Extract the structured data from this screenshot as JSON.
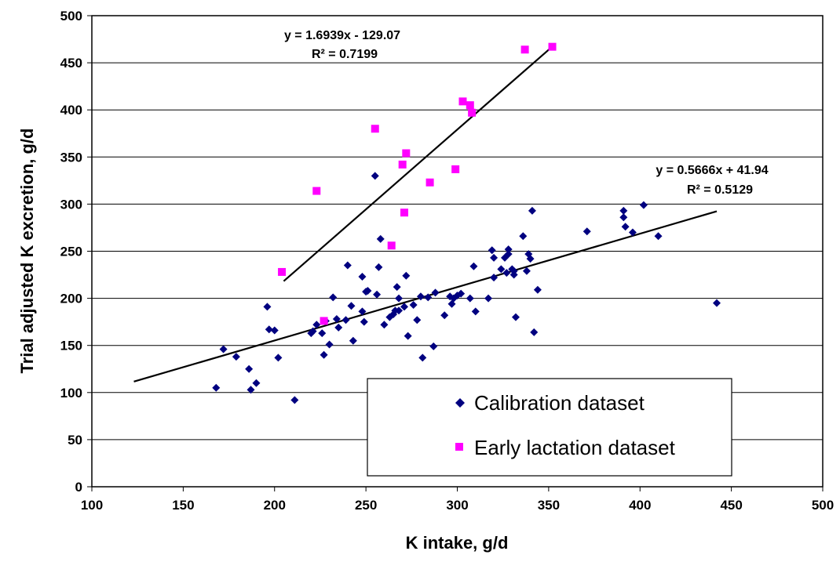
{
  "chart_data": {
    "type": "scatter",
    "xlabel": "K intake, g/d",
    "ylabel": "Trial adjusted K excretion, g/d",
    "xlim": [
      100,
      500
    ],
    "ylim": [
      0,
      500
    ],
    "xticks": [
      "100",
      "150",
      "200",
      "250",
      "300",
      "350",
      "400",
      "450",
      "500"
    ],
    "yticks": [
      "0",
      "50",
      "100",
      "150",
      "200",
      "250",
      "300",
      "350",
      "400",
      "450",
      "500"
    ],
    "grid": "horizontal",
    "legend_position": "bottom-right",
    "series": [
      {
        "name": "Calibration dataset",
        "marker": "diamond",
        "color": "#000080",
        "points": [
          [
            168,
            105
          ],
          [
            172,
            146
          ],
          [
            179,
            138
          ],
          [
            186,
            125
          ],
          [
            187,
            103
          ],
          [
            190,
            110
          ],
          [
            196,
            191
          ],
          [
            197,
            167
          ],
          [
            200,
            166
          ],
          [
            202,
            137
          ],
          [
            211,
            92
          ],
          [
            220,
            163
          ],
          [
            221,
            165
          ],
          [
            223,
            172
          ],
          [
            226,
            163
          ],
          [
            227,
            140
          ],
          [
            228,
            176
          ],
          [
            230,
            151
          ],
          [
            232,
            201
          ],
          [
            234,
            178
          ],
          [
            235,
            169
          ],
          [
            239,
            177
          ],
          [
            240,
            235
          ],
          [
            242,
            192
          ],
          [
            243,
            155
          ],
          [
            248,
            223
          ],
          [
            248,
            186
          ],
          [
            249,
            175
          ],
          [
            250,
            207
          ],
          [
            251,
            208
          ],
          [
            255,
            330
          ],
          [
            256,
            204
          ],
          [
            257,
            233
          ],
          [
            258,
            263
          ],
          [
            260,
            172
          ],
          [
            263,
            180
          ],
          [
            265,
            183
          ],
          [
            266,
            187
          ],
          [
            267,
            212
          ],
          [
            268,
            187
          ],
          [
            268,
            200
          ],
          [
            271,
            191
          ],
          [
            272,
            224
          ],
          [
            273,
            160
          ],
          [
            276,
            193
          ],
          [
            278,
            177
          ],
          [
            280,
            202
          ],
          [
            281,
            137
          ],
          [
            284,
            201
          ],
          [
            287,
            149
          ],
          [
            288,
            206
          ],
          [
            293,
            182
          ],
          [
            296,
            202
          ],
          [
            297,
            194
          ],
          [
            298,
            200
          ],
          [
            300,
            203
          ],
          [
            302,
            205
          ],
          [
            307,
            200
          ],
          [
            309,
            234
          ],
          [
            310,
            186
          ],
          [
            317,
            200
          ],
          [
            319,
            251
          ],
          [
            320,
            222
          ],
          [
            320,
            243
          ],
          [
            324,
            231
          ],
          [
            326,
            243
          ],
          [
            327,
            227
          ],
          [
            328,
            252
          ],
          [
            328,
            247
          ],
          [
            330,
            231
          ],
          [
            331,
            229
          ],
          [
            331,
            225
          ],
          [
            332,
            180
          ],
          [
            336,
            266
          ],
          [
            338,
            229
          ],
          [
            339,
            247
          ],
          [
            340,
            242
          ],
          [
            341,
            293
          ],
          [
            342,
            164
          ],
          [
            344,
            209
          ],
          [
            371,
            271
          ],
          [
            391,
            286
          ],
          [
            391,
            293
          ],
          [
            392,
            276
          ],
          [
            396,
            270
          ],
          [
            402,
            299
          ],
          [
            410,
            266
          ],
          [
            442,
            195
          ]
        ],
        "trendline": {
          "x": [
            123,
            442
          ],
          "y": [
            111.6,
            292.4
          ],
          "equation": "y = 0.5666x + 41.94",
          "r2": "R² = 0.5129"
        }
      },
      {
        "name": "Early lactation dataset",
        "marker": "square",
        "color": "#FF00FF",
        "points": [
          [
            204,
            228
          ],
          [
            223,
            314
          ],
          [
            227,
            176
          ],
          [
            255,
            380
          ],
          [
            264,
            256
          ],
          [
            270,
            342
          ],
          [
            271,
            291
          ],
          [
            272,
            354
          ],
          [
            285,
            323
          ],
          [
            299,
            337
          ],
          [
            303,
            409
          ],
          [
            307,
            405
          ],
          [
            308,
            397
          ],
          [
            337,
            464
          ],
          [
            352,
            467
          ]
        ],
        "trendline": {
          "x": [
            205,
            352
          ],
          "y": [
            218.2,
            467.2
          ],
          "equation": "y = 1.6939x  - 129.07",
          "r2": "R² = 0.7199"
        }
      }
    ]
  }
}
